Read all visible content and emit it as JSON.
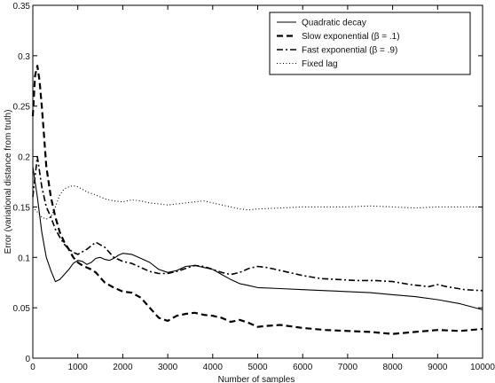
{
  "chart_data": {
    "type": "line",
    "xlabel": "Number of samples",
    "ylabel": "Error (variational distance from truth)",
    "xlim": [
      0,
      10000
    ],
    "ylim": [
      0,
      0.35
    ],
    "xticks": [
      0,
      1000,
      2000,
      3000,
      4000,
      5000,
      6000,
      7000,
      8000,
      9000,
      10000
    ],
    "yticks": [
      0,
      0.05,
      0.1,
      0.15,
      0.2,
      0.25,
      0.3,
      0.35
    ],
    "xtick_labels": [
      "0",
      "1000",
      "2000",
      "3000",
      "4000",
      "5000",
      "6000",
      "7000",
      "8000",
      "9000",
      "10000"
    ],
    "ytick_labels": [
      "0",
      "0.05",
      "0.1",
      "0.15",
      "0.2",
      "0.25",
      "0.3",
      "0.35"
    ],
    "grid": false,
    "legend_position": "top-right",
    "series": [
      {
        "name": "Quadratic decay",
        "style": "solid",
        "x": [
          0,
          100,
          200,
          300,
          400,
          500,
          600,
          700,
          800,
          900,
          1000,
          1100,
          1200,
          1300,
          1400,
          1500,
          1600,
          1700,
          1800,
          1900,
          2000,
          2200,
          2400,
          2600,
          2800,
          3000,
          3200,
          3400,
          3600,
          3800,
          4000,
          4200,
          4400,
          4600,
          4800,
          5000,
          5500,
          6000,
          6500,
          7000,
          7500,
          8000,
          8500,
          9000,
          9500,
          10000
        ],
        "y": [
          0.19,
          0.16,
          0.125,
          0.1,
          0.087,
          0.076,
          0.078,
          0.083,
          0.088,
          0.094,
          0.097,
          0.096,
          0.093,
          0.095,
          0.099,
          0.1,
          0.098,
          0.097,
          0.099,
          0.102,
          0.104,
          0.103,
          0.099,
          0.095,
          0.088,
          0.085,
          0.087,
          0.091,
          0.092,
          0.09,
          0.088,
          0.083,
          0.078,
          0.074,
          0.072,
          0.07,
          0.069,
          0.068,
          0.067,
          0.066,
          0.065,
          0.063,
          0.061,
          0.058,
          0.054,
          0.048
        ]
      },
      {
        "name": "Slow exponential (β = .1)",
        "style": "dashed",
        "x": [
          0,
          50,
          100,
          150,
          200,
          250,
          300,
          400,
          500,
          600,
          700,
          800,
          900,
          1000,
          1100,
          1200,
          1300,
          1400,
          1500,
          1600,
          1800,
          2000,
          2200,
          2400,
          2600,
          2800,
          3000,
          3200,
          3400,
          3600,
          3800,
          4000,
          4200,
          4400,
          4600,
          4800,
          5000,
          5200,
          5500,
          6000,
          6500,
          7000,
          7500,
          8000,
          8500,
          9000,
          9500,
          10000
        ],
        "y": [
          0.24,
          0.28,
          0.29,
          0.275,
          0.25,
          0.22,
          0.19,
          0.16,
          0.14,
          0.125,
          0.115,
          0.108,
          0.1,
          0.095,
          0.092,
          0.09,
          0.088,
          0.085,
          0.08,
          0.075,
          0.07,
          0.066,
          0.065,
          0.06,
          0.05,
          0.04,
          0.037,
          0.042,
          0.044,
          0.045,
          0.043,
          0.042,
          0.04,
          0.036,
          0.038,
          0.035,
          0.031,
          0.032,
          0.033,
          0.03,
          0.028,
          0.027,
          0.026,
          0.024,
          0.026,
          0.028,
          0.027,
          0.029
        ]
      },
      {
        "name": "Fast exponential (β = .9)",
        "style": "dashdot",
        "x": [
          0,
          100,
          200,
          300,
          400,
          500,
          600,
          700,
          800,
          900,
          1000,
          1200,
          1400,
          1600,
          1800,
          2000,
          2200,
          2400,
          2600,
          2800,
          3000,
          3200,
          3400,
          3600,
          3800,
          4000,
          4200,
          4400,
          4600,
          4800,
          5000,
          5200,
          5400,
          5600,
          5800,
          6000,
          6400,
          6800,
          7200,
          7600,
          8000,
          8400,
          8800,
          9000,
          9200,
          9600,
          10000
        ],
        "y": [
          0.16,
          0.2,
          0.17,
          0.15,
          0.14,
          0.128,
          0.12,
          0.113,
          0.108,
          0.105,
          0.103,
          0.108,
          0.115,
          0.11,
          0.1,
          0.096,
          0.094,
          0.09,
          0.086,
          0.084,
          0.084,
          0.086,
          0.089,
          0.092,
          0.091,
          0.088,
          0.085,
          0.083,
          0.085,
          0.089,
          0.091,
          0.09,
          0.088,
          0.086,
          0.084,
          0.082,
          0.079,
          0.078,
          0.077,
          0.077,
          0.076,
          0.073,
          0.071,
          0.073,
          0.071,
          0.068,
          0.067
        ]
      },
      {
        "name": "Fixed lag",
        "style": "dotted",
        "x": [
          0,
          100,
          200,
          300,
          400,
          500,
          600,
          700,
          800,
          900,
          1000,
          1200,
          1400,
          1600,
          1800,
          2000,
          2200,
          2400,
          2600,
          2800,
          3000,
          3200,
          3400,
          3600,
          3800,
          4000,
          4200,
          4400,
          4600,
          4800,
          5000,
          5500,
          6000,
          6500,
          7000,
          7500,
          8000,
          8500,
          9000,
          9500,
          10000
        ],
        "y": [
          0.15,
          0.145,
          0.14,
          0.138,
          0.14,
          0.15,
          0.162,
          0.168,
          0.17,
          0.171,
          0.17,
          0.165,
          0.162,
          0.158,
          0.156,
          0.155,
          0.157,
          0.156,
          0.154,
          0.153,
          0.152,
          0.153,
          0.154,
          0.155,
          0.156,
          0.154,
          0.152,
          0.15,
          0.148,
          0.147,
          0.148,
          0.149,
          0.15,
          0.15,
          0.15,
          0.151,
          0.15,
          0.149,
          0.15,
          0.15,
          0.15
        ]
      }
    ]
  }
}
